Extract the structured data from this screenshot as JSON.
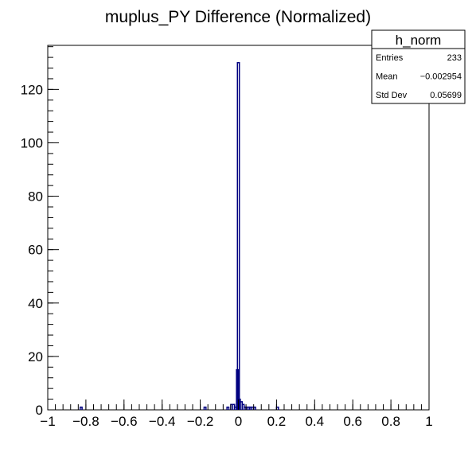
{
  "chart_data": {
    "type": "bar",
    "title": "muplus_PY Difference (Normalized)",
    "xlabel": "",
    "ylabel": "",
    "xlim": [
      -1,
      1
    ],
    "ylim": [
      0,
      136.5
    ],
    "x_ticks": [
      -1,
      -0.8,
      -0.6,
      -0.4,
      -0.2,
      0,
      0.2,
      0.4,
      0.6,
      0.8,
      1
    ],
    "x_tick_labels": [
      "−1",
      "−0.8",
      "−0.6",
      "−0.4",
      "−0.2",
      "0",
      "0.2",
      "0.4",
      "0.6",
      "0.8",
      "1"
    ],
    "y_ticks": [
      0,
      20,
      40,
      60,
      80,
      100,
      120
    ],
    "y_tick_labels": [
      "0",
      "20",
      "40",
      "60",
      "80",
      "100",
      "120"
    ],
    "bin_width": 0.01,
    "bins": [
      {
        "x": -0.825,
        "y": 1
      },
      {
        "x": -0.175,
        "y": 1
      },
      {
        "x": -0.055,
        "y": 1
      },
      {
        "x": -0.035,
        "y": 2
      },
      {
        "x": -0.025,
        "y": 2
      },
      {
        "x": -0.015,
        "y": 1
      },
      {
        "x": -0.005,
        "y": 15
      },
      {
        "x": 0.0,
        "y": 130
      },
      {
        "x": 0.005,
        "y": 4
      },
      {
        "x": 0.015,
        "y": 3
      },
      {
        "x": 0.025,
        "y": 2
      },
      {
        "x": 0.035,
        "y": 1
      },
      {
        "x": 0.045,
        "y": 1
      },
      {
        "x": 0.055,
        "y": 1
      },
      {
        "x": 0.065,
        "y": 1
      },
      {
        "x": 0.075,
        "y": 1
      },
      {
        "x": 0.085,
        "y": 1
      },
      {
        "x": 0.205,
        "y": 1
      }
    ],
    "line_color": "#000080",
    "grid": false,
    "legend": "none"
  },
  "stats": {
    "name": "h_norm",
    "rows": [
      {
        "label": "Entries",
        "value": "233"
      },
      {
        "label": "Mean",
        "value": "−0.002954"
      },
      {
        "label": "Std Dev",
        "value": "0.05699"
      }
    ]
  }
}
